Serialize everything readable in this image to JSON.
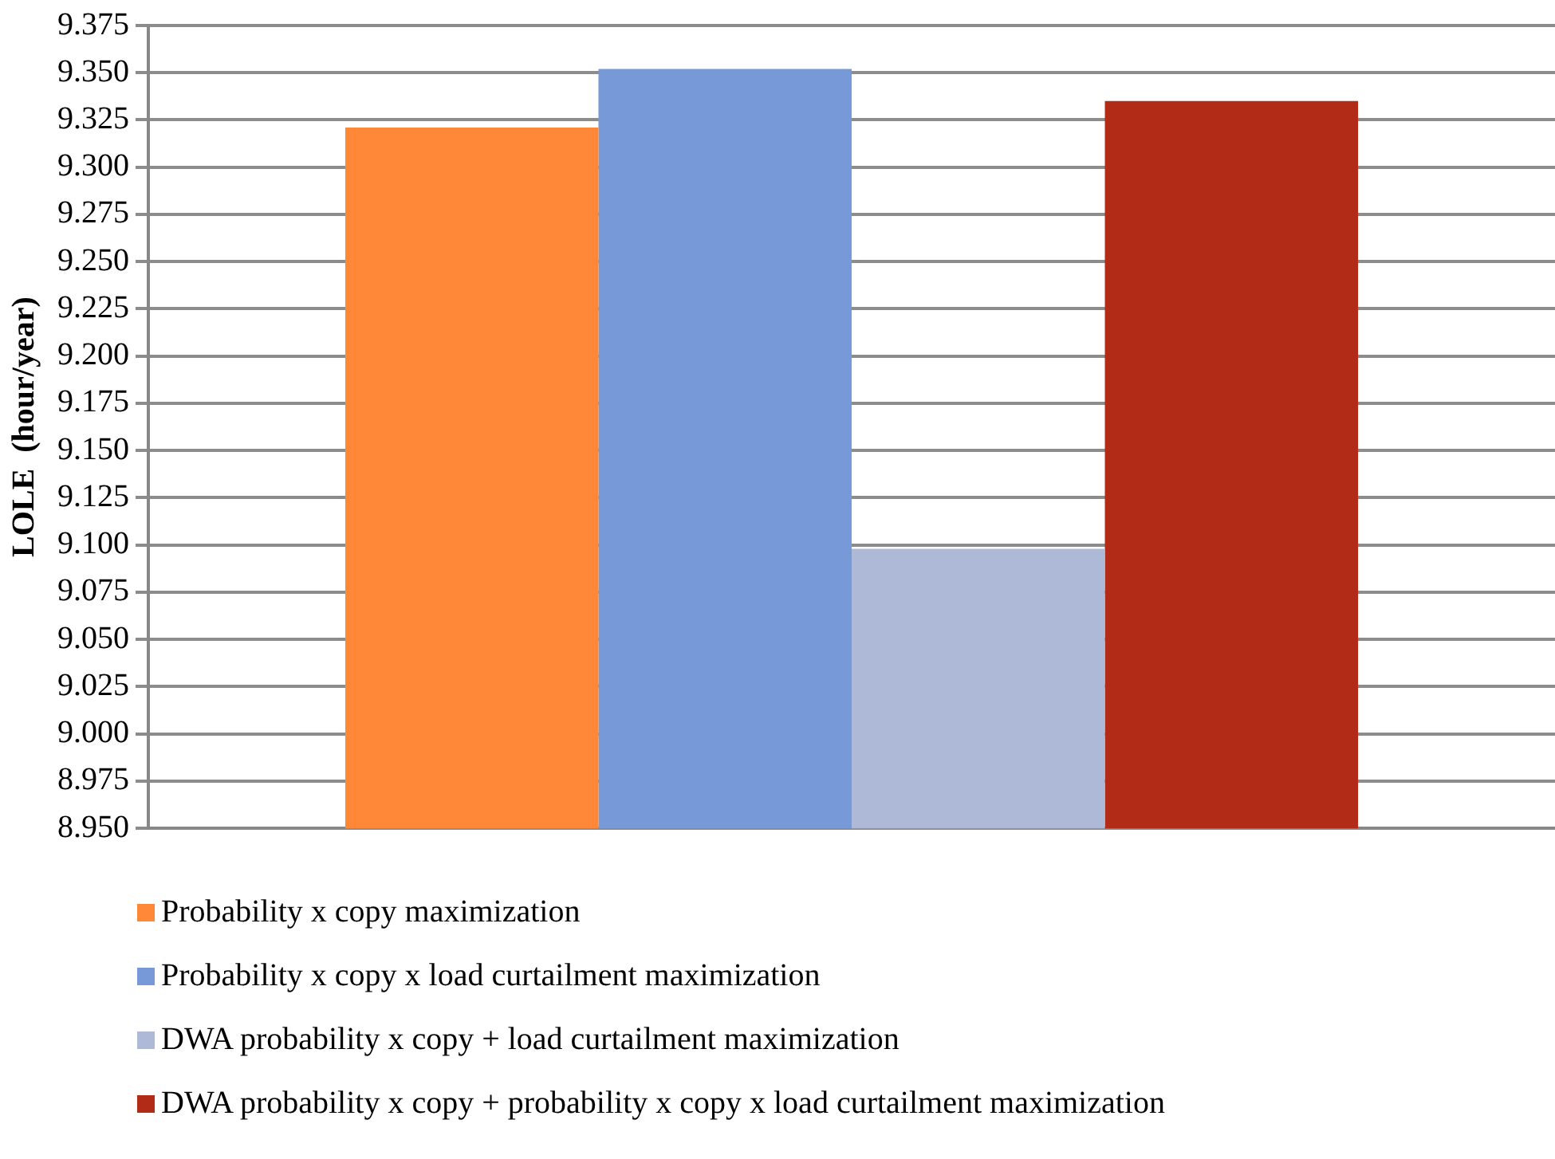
{
  "chart_data": {
    "type": "bar",
    "ylabel": "LOLE  (hour/year)",
    "categories": [
      null
    ],
    "series": [
      {
        "name": "Probability x copy  maximization",
        "color": "#ff8838",
        "values": [
          9.321
        ]
      },
      {
        "name": "Probability x copy x load curtailment  maximization",
        "color": "#7799d8",
        "values": [
          9.352
        ]
      },
      {
        "name": "DWA probability x copy + load curtailment  maximization",
        "color": "#adb9d6",
        "values": [
          9.098
        ]
      },
      {
        "name": "DWA probability x copy + probability x copy x load curtailment  maximization",
        "color": "#b22b17",
        "values": [
          9.335
        ]
      }
    ],
    "ylim": [
      8.95,
      9.375
    ],
    "yticks": [
      {
        "value": 8.95,
        "label": "8.950"
      },
      {
        "value": 8.975,
        "label": "8.975"
      },
      {
        "value": 9,
        "label": "9.000"
      },
      {
        "value": 9.025,
        "label": "9.025"
      },
      {
        "value": 9.05,
        "label": "9.050"
      },
      {
        "value": 9.075,
        "label": "9.075"
      },
      {
        "value": 9.1,
        "label": "9.100"
      },
      {
        "value": 9.125,
        "label": "9.125"
      },
      {
        "value": 9.15,
        "label": "9.150"
      },
      {
        "value": 9.175,
        "label": "9.175"
      },
      {
        "value": 9.2,
        "label": "9.200"
      },
      {
        "value": 9.225,
        "label": "9.225"
      },
      {
        "value": 9.25,
        "label": "9.250"
      },
      {
        "value": 9.275,
        "label": "9.275"
      },
      {
        "value": 9.3,
        "label": "9.300"
      },
      {
        "value": 9.325,
        "label": "9.325"
      },
      {
        "value": 9.35,
        "label": "9.350"
      },
      {
        "value": 9.375,
        "label": "9.375"
      }
    ],
    "grid": "y",
    "legend": "bottom"
  }
}
